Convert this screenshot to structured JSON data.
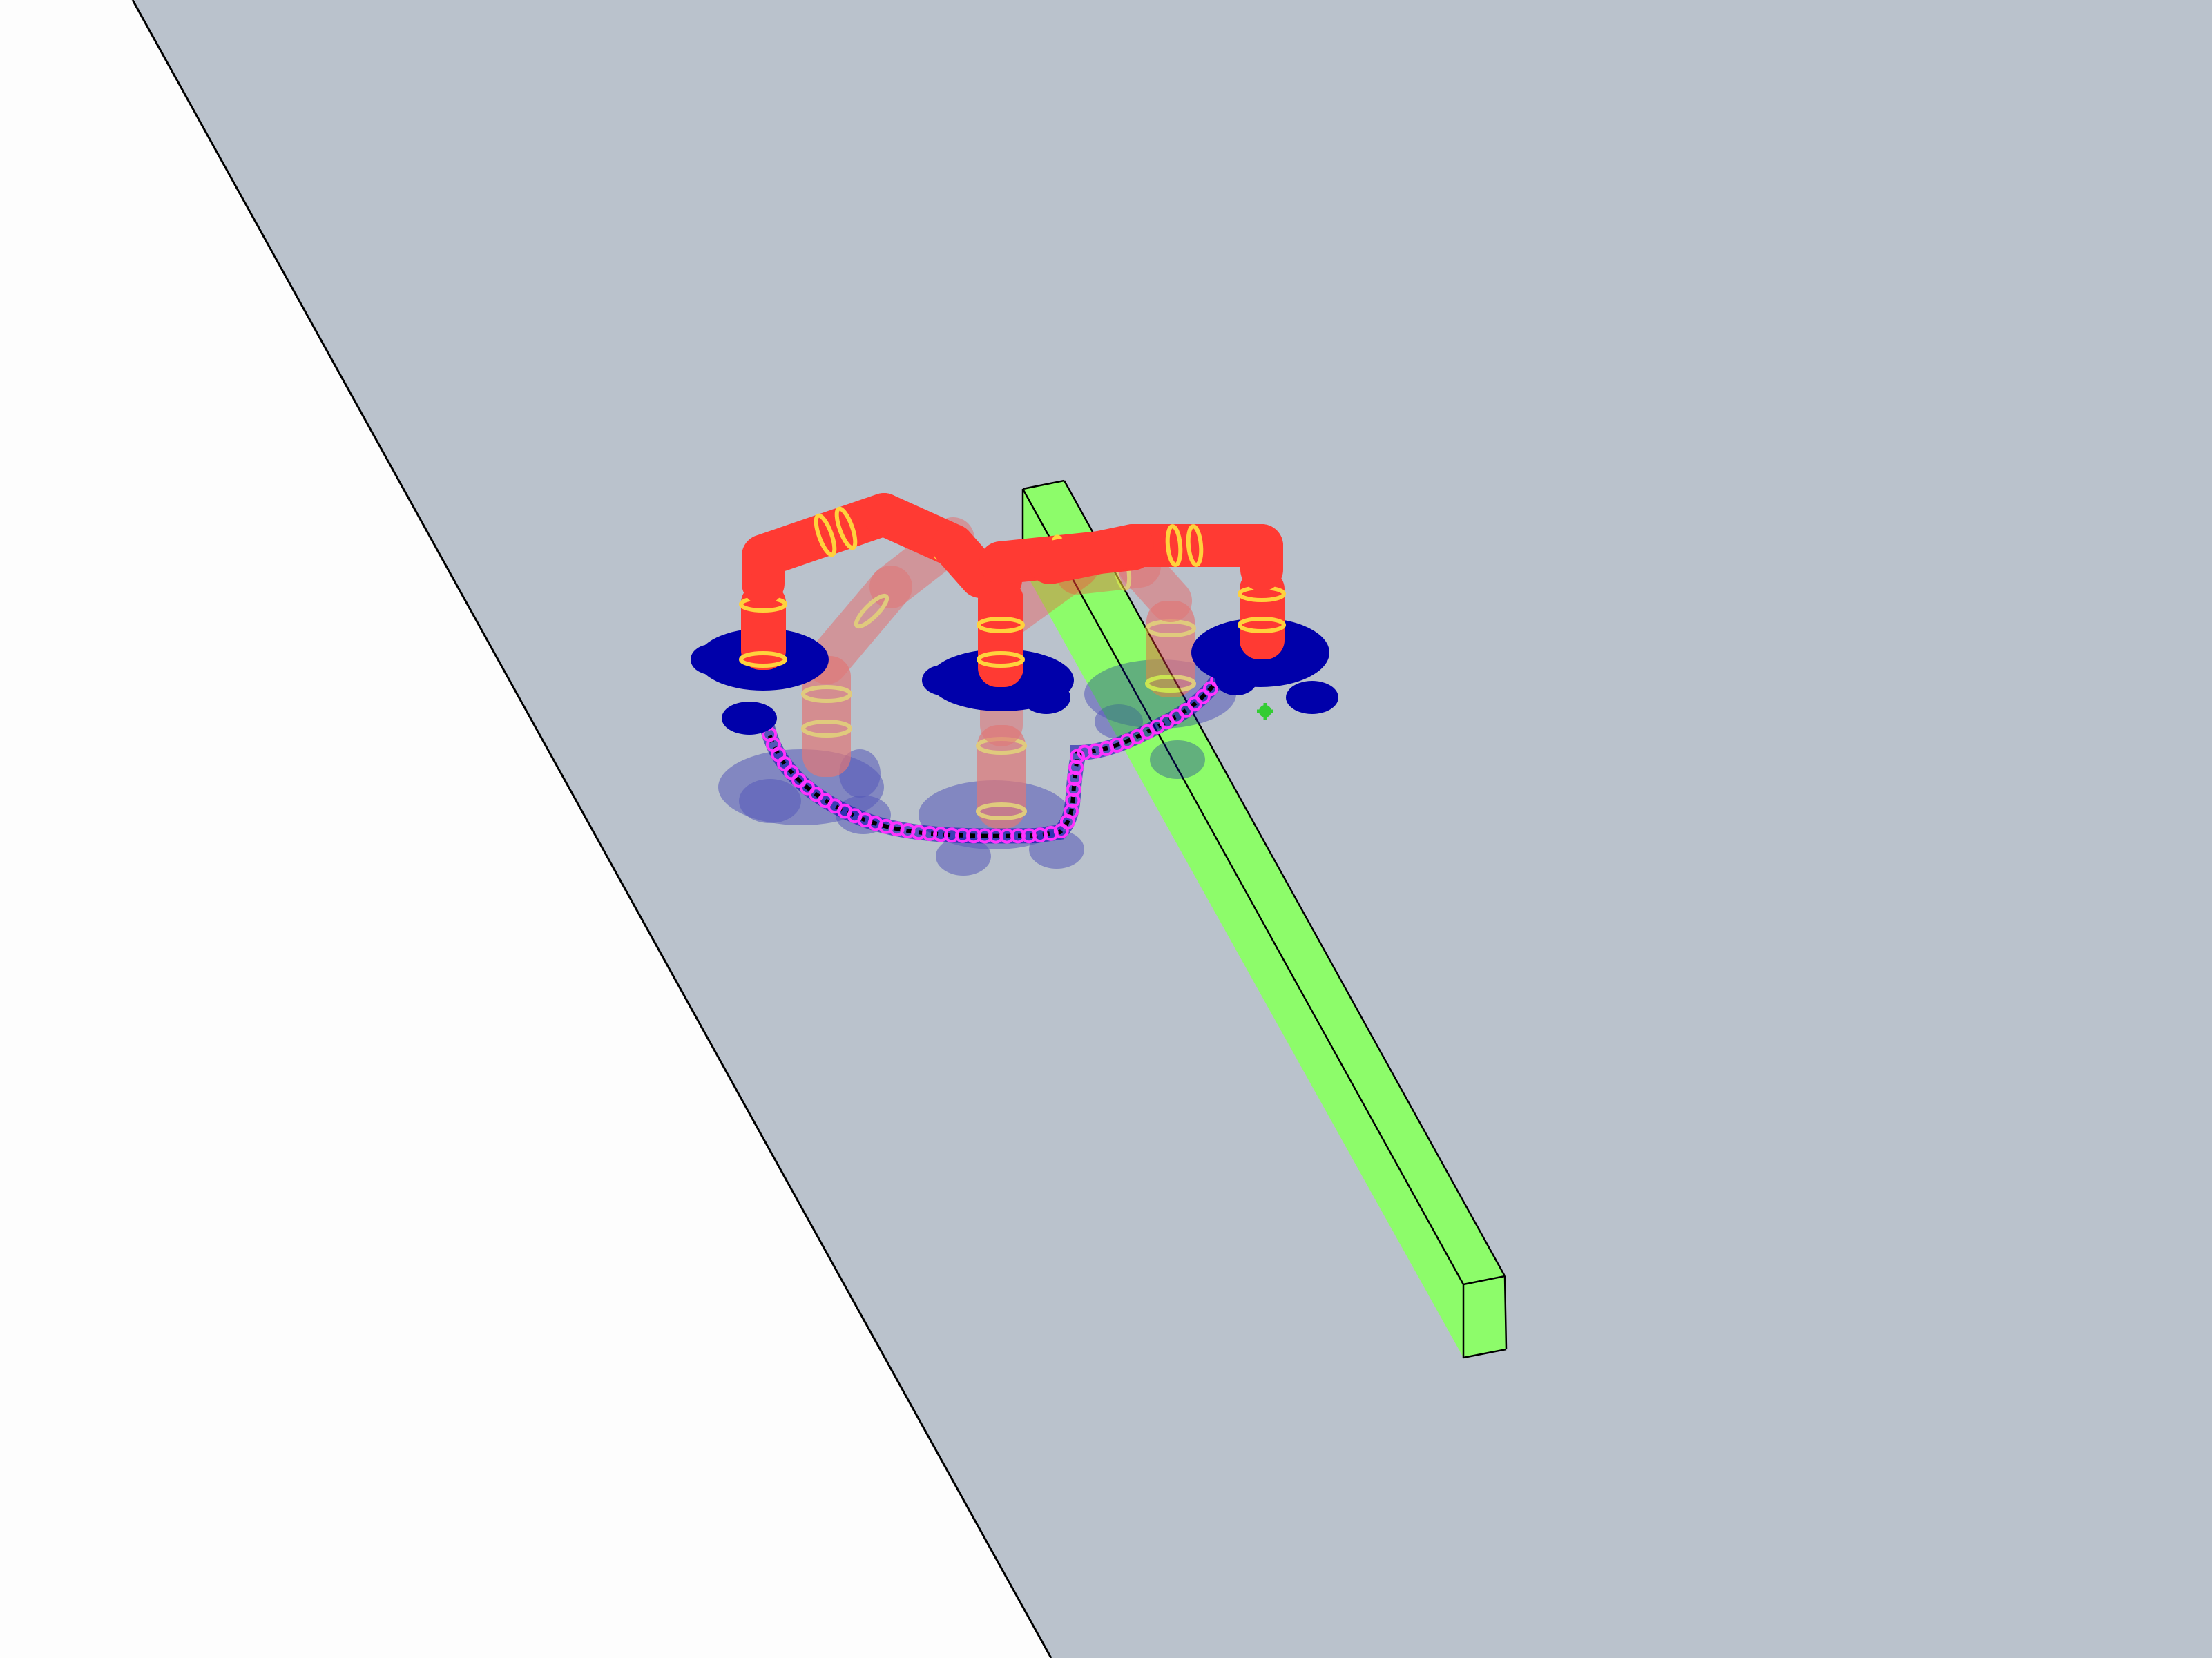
{
  "scene": {
    "colors": {
      "background": "#fdfdfd",
      "floor": "#bac2cc",
      "floor_edge": "#000000",
      "obstacle": "#8dfc6a",
      "obstacle_edge": "#000000",
      "arm_link": "#ff3a33",
      "arm_ring": "#ffd23c",
      "mobile_base": "#0000aa",
      "path_marker": "#ff33ff",
      "path_line": "#000000",
      "goal_marker": "#33cc33"
    },
    "icons": {
      "floor": "ground-plane",
      "obstacle": "green-bar-obstacle",
      "robot": "mobile-manipulator",
      "trajectory": "planned-trajectory",
      "goal": "goal-marker"
    },
    "robot_poses_shown": 5
  }
}
